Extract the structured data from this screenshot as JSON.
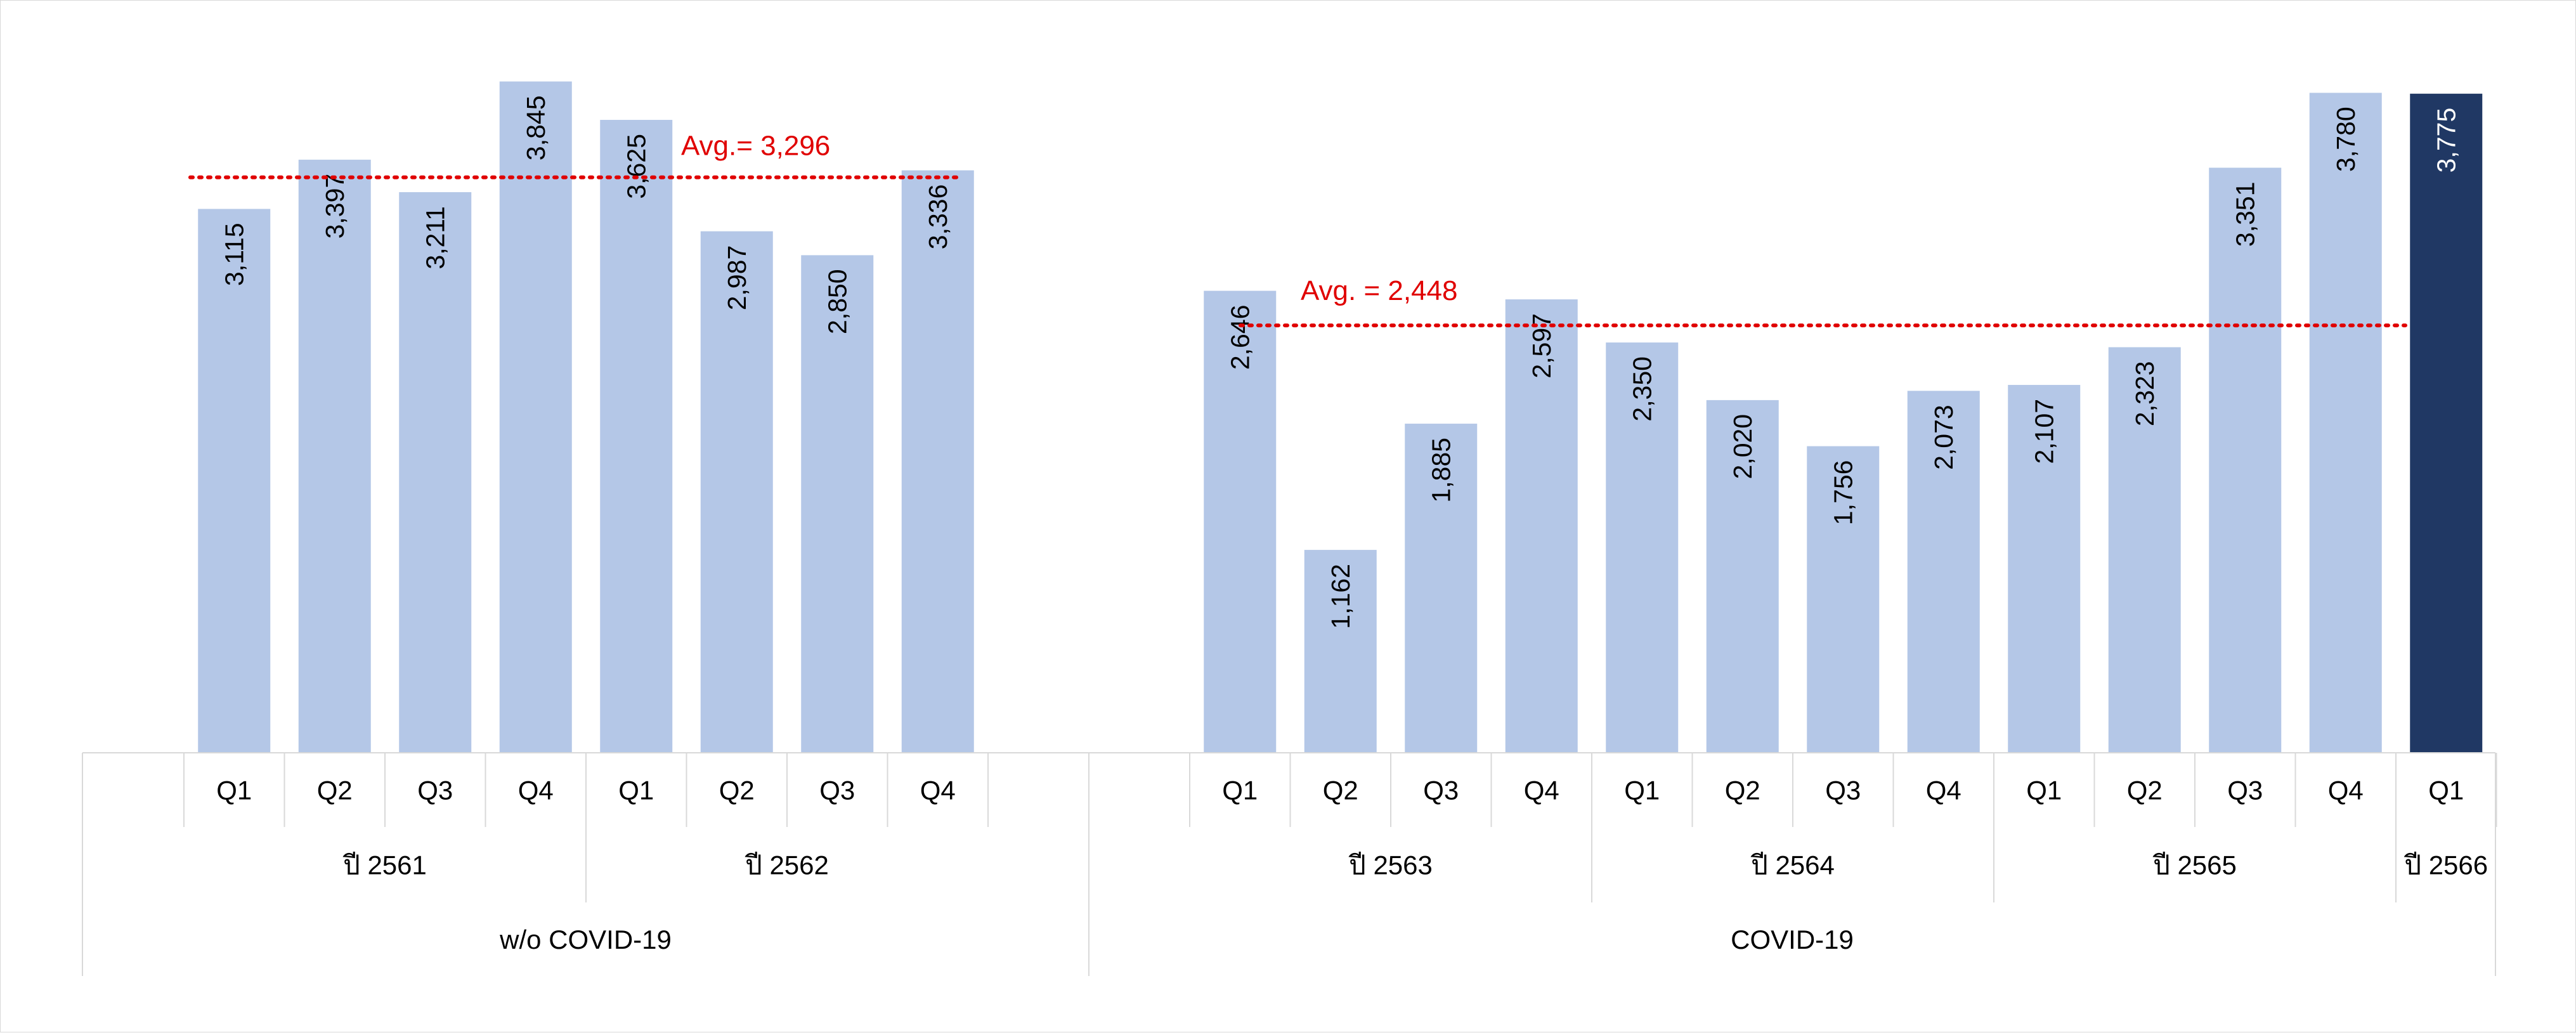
{
  "chart_data": {
    "type": "bar",
    "categories": [
      "Q1",
      "Q2",
      "Q3",
      "Q4",
      "Q1",
      "Q2",
      "Q3",
      "Q4",
      "Q1",
      "Q2",
      "Q3",
      "Q4",
      "Q1",
      "Q2",
      "Q3",
      "Q4",
      "Q1",
      "Q2",
      "Q3",
      "Q4",
      "Q1"
    ],
    "values": [
      3115,
      3397,
      3211,
      3845,
      3625,
      2987,
      2850,
      3336,
      2646,
      1162,
      1885,
      2597,
      2350,
      2020,
      1756,
      2073,
      2107,
      2323,
      3351,
      3780,
      3775
    ],
    "value_labels": [
      "3,115",
      "3,397",
      "3,211",
      "3,845",
      "3,625",
      "2,987",
      "2,850",
      "3,336",
      "2,646",
      "1,162",
      "1,885",
      "2,597",
      "2,350",
      "2,020",
      "1,756",
      "2,073",
      "2,107",
      "2,323",
      "3,351",
      "3,780",
      "3,775"
    ],
    "highlight_index": 20,
    "years": [
      {
        "label": "ปี 2561",
        "count": 4
      },
      {
        "label": "ปี 2562",
        "count": 4
      },
      {
        "label": "ปี 2563",
        "count": 4
      },
      {
        "label": "ปี 2564",
        "count": 4
      },
      {
        "label": "ปี 2565",
        "count": 4
      },
      {
        "label": "ปี 2566",
        "count": 1
      }
    ],
    "periods": [
      {
        "label": "w/o COVID-19",
        "count": 8
      },
      {
        "label": "COVID-19",
        "count": 13
      }
    ],
    "averages": [
      {
        "label": "Avg.= 3,296",
        "value": 3296,
        "period": 0
      },
      {
        "label": "Avg. = 2,448",
        "value": 2448,
        "period": 1
      }
    ],
    "ylim": [
      0,
      4000
    ],
    "grid": false,
    "title": "",
    "xlabel": "",
    "ylabel": "",
    "colors": {
      "bar": "#b4c7e7",
      "highlight": "#203864",
      "average_line": "#e00000",
      "axis_line": "#d9d9d9",
      "label_text": "#000000",
      "highlight_label_text": "#ffffff"
    }
  }
}
